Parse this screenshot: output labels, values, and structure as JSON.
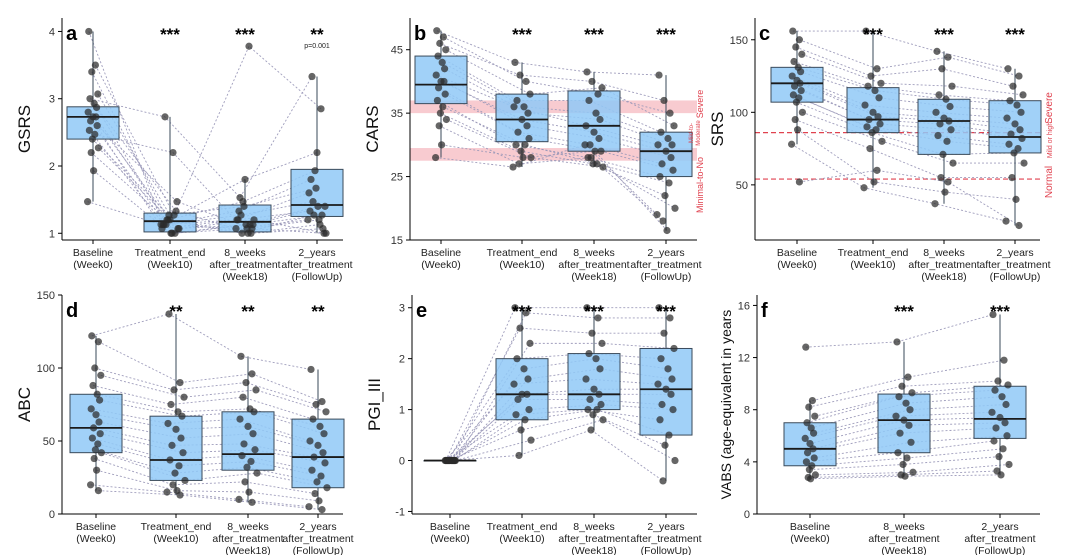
{
  "colors": {
    "box_fill": "#90c9f7",
    "box_stroke": "#3a4a5a",
    "point": "#2b2b2b",
    "line": "#9a98b8",
    "band": "#f6b9c0",
    "ref_line": "#e0424f",
    "note": "#e0424f"
  },
  "chart_data": [
    {
      "panel": "a",
      "type": "box",
      "ylabel": "GSRS",
      "ylim": [
        0.9,
        4.2
      ],
      "yticks": [
        1,
        2,
        3,
        4
      ],
      "categories": [
        [
          "Baseline",
          "(Week0)"
        ],
        [
          "Treatment_end",
          "(Week10)"
        ],
        [
          "8_weeks",
          "after_treatment",
          "(Week18)"
        ],
        [
          "2_years",
          "after_treatment",
          "(FollowUp)"
        ]
      ],
      "stars": [
        "",
        "***",
        "***",
        "**"
      ],
      "star_note": [
        "",
        "",
        "",
        "p=0.001"
      ],
      "boxes": [
        {
          "q1": 2.4,
          "med": 2.73,
          "q3": 2.88,
          "lo": 1.47,
          "hi": 4.0
        },
        {
          "q1": 1.02,
          "med": 1.18,
          "q3": 1.3,
          "lo": 1.0,
          "hi": 2.73
        },
        {
          "q1": 1.02,
          "med": 1.17,
          "q3": 1.42,
          "lo": 1.0,
          "hi": 1.8
        },
        {
          "q1": 1.25,
          "med": 1.42,
          "q3": 1.95,
          "lo": 1.0,
          "hi": 3.33
        }
      ],
      "subjects": [
        [
          4.0,
          1.13,
          1.2,
          1.33
        ],
        [
          3.5,
          1.27,
          3.78,
          2.85
        ],
        [
          3.4,
          1.2,
          1.47,
          1.93
        ],
        [
          3.07,
          1.07,
          1.13,
          1.4
        ],
        [
          3.0,
          2.73,
          1.53,
          3.33
        ],
        [
          2.93,
          1.0,
          1.07,
          1.2
        ],
        [
          2.87,
          1.33,
          1.0,
          1.07
        ],
        [
          2.8,
          1.07,
          1.2,
          1.6
        ],
        [
          2.73,
          1.2,
          1.8,
          2.2
        ],
        [
          2.73,
          1.0,
          1.13,
          1.27
        ],
        [
          2.67,
          1.13,
          1.27,
          1.47
        ],
        [
          2.6,
          1.47,
          1.07,
          1.0
        ],
        [
          2.53,
          1.13,
          1.33,
          1.8
        ],
        [
          2.47,
          2.2,
          1.0,
          1.13
        ],
        [
          2.4,
          1.27,
          1.4,
          1.67
        ],
        [
          2.27,
          1.07,
          1.2,
          1.0
        ],
        [
          2.2,
          1.2,
          1.0,
          1.27
        ],
        [
          1.93,
          1.0,
          1.13,
          1.4
        ],
        [
          1.47,
          1.13,
          1.07,
          1.2
        ]
      ]
    },
    {
      "panel": "b",
      "type": "box",
      "ylabel": "CARS",
      "ylim": [
        15,
        50
      ],
      "yticks": [
        15,
        25,
        35,
        45
      ],
      "categories": [
        [
          "Baseline",
          "(Week0)"
        ],
        [
          "Treatment_end",
          "(Week10)"
        ],
        [
          "8_weeks",
          "after_treatment",
          "(Week18)"
        ],
        [
          "2_years",
          "after_treatment",
          "(FollowUp)"
        ]
      ],
      "stars": [
        "",
        "***",
        "***",
        "***"
      ],
      "bands": [
        [
          29.5,
          27.5
        ],
        [
          37,
          35
        ]
      ],
      "band_labels": [
        "Severe",
        "Mild-to-",
        "Moderate",
        "Minimal-to-No"
      ],
      "boxes": [
        {
          "q1": 36.5,
          "med": 39.5,
          "q3": 44.0,
          "lo": 28.0,
          "hi": 48.0
        },
        {
          "q1": 30.5,
          "med": 34.0,
          "q3": 38.0,
          "lo": 26.5,
          "hi": 43.0
        },
        {
          "q1": 29.0,
          "med": 33.0,
          "q3": 38.5,
          "lo": 26.5,
          "hi": 41.5
        },
        {
          "q1": 25.0,
          "med": 29.0,
          "q3": 32.0,
          "lo": 16.5,
          "hi": 41.0
        }
      ],
      "subjects": [
        [
          48,
          43,
          41.5,
          41
        ],
        [
          47,
          40,
          38,
          35
        ],
        [
          46,
          41,
          40,
          37
        ],
        [
          45,
          38,
          39,
          33
        ],
        [
          44,
          37,
          37,
          32
        ],
        [
          43,
          36,
          35,
          31
        ],
        [
          42,
          35,
          34,
          30
        ],
        [
          41,
          36,
          33,
          30
        ],
        [
          40,
          34,
          32,
          29
        ],
        [
          40,
          33,
          31,
          28
        ],
        [
          39,
          32,
          30,
          27
        ],
        [
          38,
          31,
          29,
          26
        ],
        [
          37,
          30,
          28,
          25
        ],
        [
          36,
          30,
          27,
          24
        ],
        [
          35,
          29,
          27,
          22
        ],
        [
          34,
          28,
          26.5,
          20
        ],
        [
          33,
          27,
          28,
          18
        ],
        [
          30,
          28,
          29,
          16.5
        ],
        [
          28,
          26.5,
          30,
          19
        ]
      ]
    },
    {
      "panel": "c",
      "type": "box",
      "ylabel": "SRS",
      "ylim": [
        12,
        165
      ],
      "yticks": [
        50,
        100,
        150
      ],
      "categories": [
        [
          "Baseline",
          "(Week0)"
        ],
        [
          "Treatment_end",
          "(Week10)"
        ],
        [
          "8_weeks",
          "after_treatment",
          "(Week18)"
        ],
        [
          "2_years",
          "after_treatment",
          "(FollowUp)"
        ]
      ],
      "stars": [
        "",
        "***",
        "***",
        "***"
      ],
      "ref_lines": [
        86,
        54
      ],
      "ref_labels": [
        "Severe",
        "Mild or high",
        "Normal"
      ],
      "boxes": [
        {
          "q1": 107,
          "med": 120,
          "q3": 131,
          "lo": 78,
          "hi": 156
        },
        {
          "q1": 86,
          "med": 95,
          "q3": 117,
          "lo": 48,
          "hi": 156
        },
        {
          "q1": 71,
          "med": 94,
          "q3": 109,
          "lo": 37,
          "hi": 142
        },
        {
          "q1": 72,
          "med": 83,
          "q3": 108,
          "lo": 22,
          "hi": 130
        }
      ],
      "subjects": [
        [
          156,
          156,
          142,
          130
        ],
        [
          150,
          130,
          138,
          125
        ],
        [
          145,
          125,
          130,
          118
        ],
        [
          140,
          120,
          118,
          112
        ],
        [
          135,
          118,
          112,
          108
        ],
        [
          131,
          115,
          109,
          105
        ],
        [
          128,
          110,
          104,
          100
        ],
        [
          125,
          105,
          100,
          96
        ],
        [
          122,
          100,
          96,
          92
        ],
        [
          120,
          97,
          94,
          88
        ],
        [
          118,
          95,
          92,
          85
        ],
        [
          115,
          92,
          88,
          82
        ],
        [
          112,
          90,
          84,
          78
        ],
        [
          110,
          88,
          80,
          75
        ],
        [
          107,
          86,
          71,
          72
        ],
        [
          100,
          80,
          65,
          65
        ],
        [
          95,
          75,
          55,
          55
        ],
        [
          88,
          52,
          45,
          40
        ],
        [
          78,
          48,
          37,
          25
        ],
        [
          52,
          60,
          52,
          22
        ]
      ]
    },
    {
      "panel": "d",
      "type": "box",
      "ylabel": "ABC",
      "ylim": [
        0,
        150
      ],
      "yticks": [
        0,
        50,
        100,
        150
      ],
      "categories": [
        [
          "Baseline",
          "(Week0)"
        ],
        [
          "Treatment_end",
          "(Week10)"
        ],
        [
          "8_weeks",
          "after_treatment",
          "(Week18)"
        ],
        [
          "2_years",
          "after_treatment",
          "(FollowUp)"
        ]
      ],
      "stars": [
        "",
        "**",
        "**",
        "**"
      ],
      "boxes": [
        {
          "q1": 42,
          "med": 59,
          "q3": 82,
          "lo": 16,
          "hi": 122
        },
        {
          "q1": 23,
          "med": 37,
          "q3": 67,
          "lo": 13,
          "hi": 137
        },
        {
          "q1": 30,
          "med": 41,
          "q3": 70,
          "lo": 8,
          "hi": 108
        },
        {
          "q1": 18,
          "med": 39,
          "q3": 65,
          "lo": 3,
          "hi": 99
        }
      ],
      "subjects": [
        [
          122,
          137,
          108,
          99
        ],
        [
          118,
          90,
          96,
          77
        ],
        [
          100,
          85,
          90,
          75
        ],
        [
          95,
          80,
          85,
          70
        ],
        [
          88,
          75,
          80,
          65
        ],
        [
          82,
          70,
          72,
          60
        ],
        [
          78,
          67,
          70,
          55
        ],
        [
          72,
          62,
          65,
          50
        ],
        [
          68,
          58,
          60,
          47
        ],
        [
          63,
          52,
          55,
          42
        ],
        [
          59,
          47,
          48,
          39
        ],
        [
          55,
          42,
          44,
          35
        ],
        [
          52,
          37,
          40,
          30
        ],
        [
          48,
          33,
          36,
          26
        ],
        [
          44,
          28,
          32,
          22
        ],
        [
          42,
          23,
          28,
          18
        ],
        [
          38,
          20,
          22,
          14
        ],
        [
          30,
          16,
          15,
          9
        ],
        [
          20,
          15,
          10,
          5
        ],
        [
          16,
          13,
          8,
          3
        ]
      ]
    },
    {
      "panel": "e",
      "type": "box",
      "ylabel": "PGI_III",
      "ylim": [
        -1.05,
        3.25
      ],
      "yticks": [
        -1,
        0,
        1,
        2,
        3
      ],
      "categories": [
        [
          "Baseline",
          "(Week0)"
        ],
        [
          "Treatment_end",
          "(Week10)"
        ],
        [
          "8_weeks",
          "after_treatment",
          "(Week18)"
        ],
        [
          "2_years",
          "after_treatment",
          "(FollowUp)"
        ]
      ],
      "stars": [
        "",
        "***",
        "***",
        "***"
      ],
      "boxes": [
        {
          "q1": 0,
          "med": 0,
          "q3": 0,
          "lo": 0,
          "hi": 0
        },
        {
          "q1": 0.8,
          "med": 1.3,
          "q3": 2.0,
          "lo": 0.1,
          "hi": 3.0
        },
        {
          "q1": 1.0,
          "med": 1.3,
          "q3": 2.1,
          "lo": 0.6,
          "hi": 3.0
        },
        {
          "q1": 0.5,
          "med": 1.4,
          "q3": 2.2,
          "lo": -0.4,
          "hi": 3.0
        }
      ],
      "subjects": [
        [
          0,
          3.0,
          3.0,
          3.0
        ],
        [
          0,
          2.9,
          2.8,
          2.8
        ],
        [
          0,
          2.6,
          2.5,
          2.5
        ],
        [
          0,
          2.3,
          2.3,
          2.2
        ],
        [
          0,
          2.0,
          2.1,
          2.0
        ],
        [
          0,
          1.8,
          2.0,
          1.8
        ],
        [
          0,
          1.6,
          1.8,
          1.6
        ],
        [
          0,
          1.5,
          1.6,
          1.5
        ],
        [
          0,
          1.3,
          1.4,
          1.4
        ],
        [
          0,
          1.3,
          1.3,
          1.3
        ],
        [
          0,
          1.2,
          1.2,
          1.1
        ],
        [
          0,
          1.0,
          1.1,
          1.0
        ],
        [
          0,
          0.9,
          1.0,
          0.8
        ],
        [
          0,
          0.8,
          1.0,
          0.5
        ],
        [
          0,
          0.6,
          0.9,
          0.3
        ],
        [
          0,
          0.4,
          0.8,
          0.0
        ],
        [
          0,
          0.1,
          0.6,
          -0.4
        ]
      ]
    },
    {
      "panel": "f",
      "type": "box",
      "ylabel": "VABS (age-equivalent in years",
      "ylim": [
        0,
        16.8
      ],
      "yticks": [
        0,
        4,
        8,
        12,
        16
      ],
      "categories": [
        [
          "Baseline",
          "(Week0)"
        ],
        [
          "8_weeks",
          "after_treatment",
          "(Week18)"
        ],
        [
          "2_years",
          "after_treatment",
          "(FollowUp)"
        ]
      ],
      "stars": [
        "",
        "***",
        "***"
      ],
      "boxes": [
        {
          "q1": 3.7,
          "med": 5.0,
          "q3": 7.0,
          "lo": 2.7,
          "hi": 8.7
        },
        {
          "q1": 4.7,
          "med": 7.2,
          "q3": 9.2,
          "lo": 2.9,
          "hi": 13.2
        },
        {
          "q1": 5.8,
          "med": 7.3,
          "q3": 9.8,
          "lo": 3.0,
          "hi": 15.3
        }
      ],
      "subjects": [
        [
          12.8,
          13.2,
          15.3
        ],
        [
          8.7,
          10.5,
          11.8
        ],
        [
          8.2,
          9.8,
          10.2
        ],
        [
          7.5,
          9.3,
          9.9
        ],
        [
          7.0,
          9.0,
          9.5
        ],
        [
          6.6,
          8.5,
          9.0
        ],
        [
          6.2,
          8.0,
          8.4
        ],
        [
          5.8,
          7.5,
          7.8
        ],
        [
          5.4,
          7.2,
          7.4
        ],
        [
          5.0,
          6.8,
          7.0
        ],
        [
          4.7,
          6.2,
          6.6
        ],
        [
          4.3,
          5.5,
          6.0
        ],
        [
          4.0,
          4.7,
          5.6
        ],
        [
          3.7,
          4.3,
          5.0
        ],
        [
          3.4,
          3.8,
          4.4
        ],
        [
          3.0,
          3.2,
          3.8
        ],
        [
          2.8,
          3.0,
          3.3
        ],
        [
          2.7,
          2.9,
          3.0
        ]
      ]
    }
  ]
}
